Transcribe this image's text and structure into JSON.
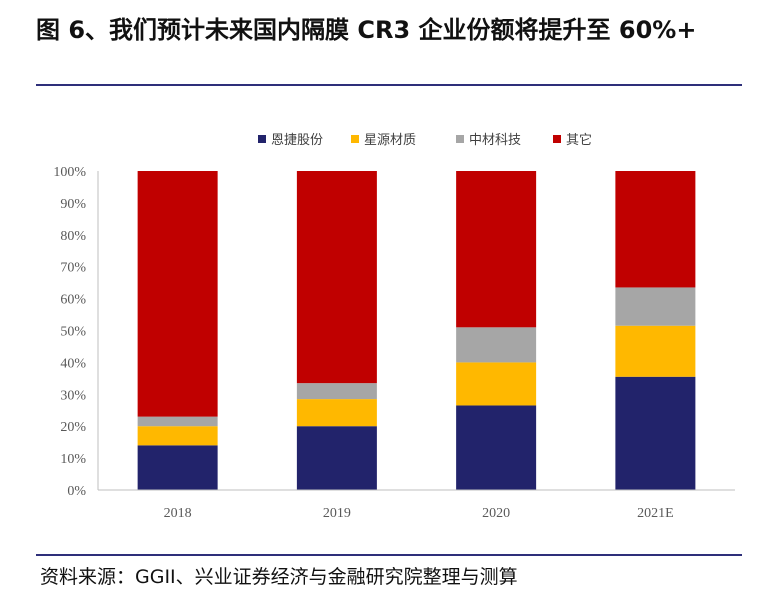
{
  "header": {
    "title": "图 6、我们预计未来国内隔膜 CR3 企业份额将提升至 60%+"
  },
  "footer": {
    "source": "资料来源：GGII、兴业证券经济与金融研究院整理与测算"
  },
  "chart_data": {
    "type": "bar",
    "stacked": true,
    "title": "",
    "xlabel": "",
    "ylabel": "",
    "ylim": [
      0,
      100
    ],
    "y_ticks": [
      "0%",
      "10%",
      "20%",
      "30%",
      "40%",
      "50%",
      "60%",
      "70%",
      "80%",
      "90%",
      "100%"
    ],
    "categories": [
      "2018",
      "2019",
      "2020",
      "2021E"
    ],
    "legend_position": "top",
    "series": [
      {
        "name": "恩捷股份",
        "color": "#22236b",
        "values": [
          14,
          20,
          26.5,
          35.5
        ]
      },
      {
        "name": "星源材质",
        "color": "#ffb800",
        "values": [
          6,
          8.5,
          13.5,
          16
        ]
      },
      {
        "name": "中材科技",
        "color": "#a6a6a6",
        "values": [
          3,
          5,
          11,
          12
        ]
      },
      {
        "name": "其它",
        "color": "#c00000",
        "values": [
          77,
          66.5,
          49,
          36.5
        ]
      }
    ]
  }
}
